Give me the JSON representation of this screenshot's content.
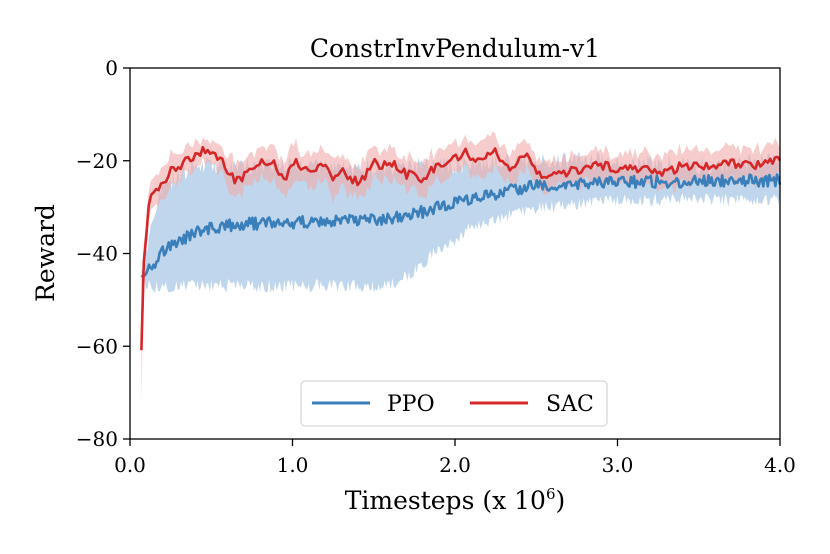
{
  "chart_data": {
    "type": "line",
    "title": "ConstrInvPendulum-v1",
    "xlabel": "Timesteps (x 10",
    "xlabel_exponent": "6",
    "xlabel_suffix": ")",
    "ylabel": "Reward",
    "xlim": [
      0.0,
      4.0
    ],
    "ylim": [
      -80,
      0
    ],
    "xticks": [
      0.0,
      1.0,
      2.0,
      3.0,
      4.0
    ],
    "xtick_labels": [
      "0.0",
      "1.0",
      "2.0",
      "3.0",
      "4.0"
    ],
    "yticks": [
      0,
      -20,
      -40,
      -60,
      -80
    ],
    "ytick_labels": [
      "0",
      "−20",
      "−40",
      "−60",
      "−80"
    ],
    "legend_position": "lower center",
    "series": [
      {
        "name": "PPO",
        "color": "#3a7fba",
        "band_color": "#a9c8e6",
        "x": [
          0.07,
          0.1,
          0.15,
          0.2,
          0.3,
          0.4,
          0.5,
          0.6,
          0.7,
          0.8,
          0.9,
          1.0,
          1.1,
          1.2,
          1.3,
          1.4,
          1.5,
          1.6,
          1.7,
          1.8,
          1.9,
          2.0,
          2.1,
          2.2,
          2.3,
          2.4,
          2.5,
          2.6,
          2.7,
          2.8,
          2.9,
          3.0,
          3.2,
          3.4,
          3.6,
          3.8,
          4.0
        ],
        "mean": [
          -44.5,
          -43.5,
          -42.0,
          -39.5,
          -37.5,
          -35.5,
          -34.5,
          -34.0,
          -33.7,
          -33.5,
          -33.4,
          -33.3,
          -33.2,
          -33.1,
          -33.0,
          -33.0,
          -32.8,
          -32.5,
          -32.0,
          -31.0,
          -30.0,
          -29.2,
          -28.3,
          -27.5,
          -26.8,
          -26.0,
          -25.5,
          -25.3,
          -25.1,
          -25.0,
          -24.9,
          -24.7,
          -24.5,
          -24.5,
          -24.4,
          -24.3,
          -24.2
        ],
        "lower": [
          -47.0,
          -46.5,
          -47.0,
          -47.0,
          -47.0,
          -47.0,
          -47.0,
          -47.0,
          -47.0,
          -47.0,
          -47.0,
          -47.0,
          -47.0,
          -47.0,
          -47.0,
          -47.0,
          -47.0,
          -47.0,
          -45.0,
          -42.0,
          -39.0,
          -37.0,
          -34.0,
          -33.0,
          -32.0,
          -31.0,
          -30.5,
          -30.0,
          -29.5,
          -29.0,
          -29.0,
          -28.5,
          -28.5,
          -28.5,
          -28.5,
          -28.5,
          -28.5
        ],
        "upper": [
          -42.0,
          -40.0,
          -30.0,
          -26.0,
          -23.0,
          -21.0,
          -21.0,
          -21.5,
          -21.5,
          -21.5,
          -21.5,
          -21.5,
          -21.5,
          -21.5,
          -21.5,
          -21.5,
          -21.5,
          -21.5,
          -21.5,
          -21.0,
          -21.0,
          -21.0,
          -20.5,
          -20.5,
          -20.5,
          -20.0,
          -20.0,
          -20.0,
          -20.0,
          -20.0,
          -20.0,
          -20.5,
          -20.5,
          -21.0,
          -21.0,
          -20.5,
          -20.0
        ],
        "noise": 1.3
      },
      {
        "name": "SAC",
        "color": "#d62728",
        "band_color": "#f2aaaa",
        "x": [
          0.07,
          0.08,
          0.1,
          0.12,
          0.15,
          0.2,
          0.25,
          0.3,
          0.35,
          0.4,
          0.45,
          0.5,
          0.55,
          0.6,
          0.65,
          0.7,
          0.75,
          0.8,
          0.85,
          0.9,
          0.95,
          1.0,
          1.05,
          1.1,
          1.15,
          1.2,
          1.25,
          1.3,
          1.35,
          1.4,
          1.45,
          1.5,
          1.55,
          1.6,
          1.65,
          1.7,
          1.75,
          1.8,
          1.85,
          1.9,
          1.95,
          2.0,
          2.05,
          2.1,
          2.15,
          2.2,
          2.25,
          2.3,
          2.35,
          2.4,
          2.45,
          2.5,
          2.55,
          2.6,
          2.7,
          2.8,
          2.9,
          3.0,
          3.1,
          3.2,
          3.3,
          3.4,
          3.5,
          3.6,
          3.7,
          3.8,
          3.9,
          4.0
        ],
        "mean": [
          -60.5,
          -45.0,
          -36.0,
          -28.0,
          -26.0,
          -25.0,
          -22.0,
          -21.0,
          -20.0,
          -19.0,
          -18.0,
          -18.5,
          -19.0,
          -23.0,
          -24.0,
          -23.5,
          -21.0,
          -20.0,
          -20.5,
          -21.0,
          -24.0,
          -20.0,
          -21.0,
          -22.5,
          -21.0,
          -20.5,
          -25.0,
          -21.0,
          -24.0,
          -24.5,
          -23.0,
          -20.5,
          -21.0,
          -20.0,
          -21.5,
          -23.0,
          -23.0,
          -25.0,
          -22.0,
          -21.0,
          -20.0,
          -19.5,
          -18.0,
          -19.0,
          -20.0,
          -19.0,
          -17.5,
          -21.0,
          -22.0,
          -20.0,
          -18.5,
          -22.0,
          -24.5,
          -23.5,
          -22.5,
          -21.5,
          -21.0,
          -22.0,
          -21.5,
          -22.0,
          -22.5,
          -21.0,
          -21.0,
          -21.5,
          -20.5,
          -21.0,
          -20.5,
          -19.0
        ],
        "spread": [
          9.0,
          6.0,
          4.0,
          3.0,
          2.5,
          3.0,
          3.0,
          3.0,
          2.5,
          2.5,
          2.5,
          2.5,
          3.0,
          3.5,
          3.5,
          3.0,
          3.0,
          3.0,
          3.5,
          3.5,
          4.0,
          4.0,
          3.5,
          3.5,
          3.5,
          3.5,
          4.0,
          4.0,
          4.0,
          3.5,
          3.5,
          3.5,
          3.5,
          3.5,
          3.5,
          3.5,
          3.5,
          3.5,
          3.5,
          3.5,
          3.0,
          3.0,
          3.0,
          3.5,
          3.5,
          4.0,
          4.0,
          3.5,
          3.5,
          3.5,
          3.0,
          3.0,
          3.0,
          3.0,
          3.0,
          3.0,
          3.0,
          3.0,
          3.5,
          3.5,
          3.5,
          3.5,
          3.5,
          3.5,
          3.5,
          3.5,
          3.5,
          3.5
        ],
        "noise": 1.0
      }
    ]
  }
}
